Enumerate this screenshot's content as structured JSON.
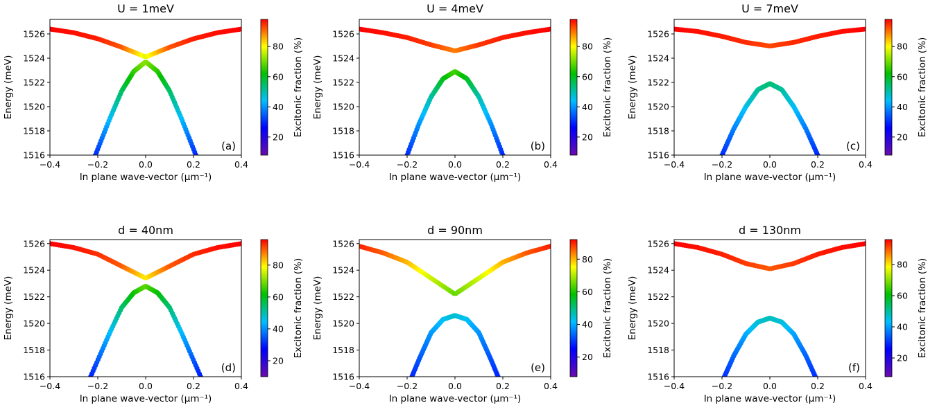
{
  "figure": {
    "common": {
      "xlabel": "In plane wave-vector (μm⁻¹)",
      "ylabel": "Energy (meV)",
      "colorbar_label": "Excitonic fraction (%)",
      "xticks": [
        "−0.4",
        "−0.2",
        "0.0",
        "0.2",
        "0.4"
      ],
      "yticks": [
        "1516",
        "1518",
        "1520",
        "1522",
        "1524",
        "1526"
      ],
      "cbticks": [
        "20",
        "40",
        "60",
        "80"
      ],
      "colormap": [
        "#6a0dad",
        "#0000ff",
        "#00bfff",
        "#00c000",
        "#ffff00",
        "#ff0000"
      ]
    }
  },
  "chart_data": [
    {
      "type": "line",
      "title": "U = 1meV",
      "panel_label": "(a)",
      "xlabel": "In plane wave-vector (μm⁻¹)",
      "ylabel": "Energy (meV)",
      "xlim": [
        -0.4,
        0.4
      ],
      "ylim": [
        1516,
        1527.2
      ],
      "colorbar": {
        "label": "Excitonic fraction (%)",
        "range": [
          8,
          98
        ]
      },
      "branches": {
        "upper": {
          "x": [
            -0.4,
            -0.3,
            -0.2,
            -0.1,
            0.0,
            0.1,
            0.2,
            0.3,
            0.4
          ],
          "energy": [
            1526.4,
            1526.1,
            1525.6,
            1524.9,
            1524.1,
            1524.9,
            1525.6,
            1526.1,
            1526.4
          ],
          "exciton_fraction": [
            98,
            97,
            96,
            92,
            78,
            92,
            96,
            97,
            98
          ]
        },
        "lower": {
          "x": [
            -0.21,
            -0.15,
            -0.1,
            -0.05,
            0.0,
            0.05,
            0.1,
            0.15,
            0.21
          ],
          "energy": [
            1516.0,
            1519.0,
            1521.3,
            1522.9,
            1523.7,
            1522.9,
            1521.3,
            1519.0,
            1516.0
          ],
          "exciton_fraction": [
            30,
            44,
            55,
            65,
            72,
            65,
            55,
            44,
            30
          ]
        }
      }
    },
    {
      "type": "line",
      "title": "U = 4meV",
      "panel_label": "(b)",
      "xlabel": "In plane wave-vector (μm⁻¹)",
      "ylabel": "Energy (meV)",
      "xlim": [
        -0.4,
        0.4
      ],
      "ylim": [
        1516,
        1527.2
      ],
      "colorbar": {
        "label": "Excitonic fraction (%)",
        "range": [
          8,
          98
        ]
      },
      "branches": {
        "upper": {
          "x": [
            -0.4,
            -0.3,
            -0.2,
            -0.1,
            0.0,
            0.1,
            0.2,
            0.3,
            0.4
          ],
          "energy": [
            1526.4,
            1526.1,
            1525.7,
            1525.1,
            1524.6,
            1525.1,
            1525.7,
            1526.1,
            1526.4
          ],
          "exciton_fraction": [
            98,
            97,
            96,
            94,
            89,
            94,
            96,
            97,
            98
          ]
        },
        "lower": {
          "x": [
            -0.2,
            -0.15,
            -0.1,
            -0.05,
            0.0,
            0.05,
            0.1,
            0.15,
            0.2
          ],
          "energy": [
            1516.0,
            1518.6,
            1520.8,
            1522.3,
            1522.9,
            1522.3,
            1520.8,
            1518.6,
            1516.0
          ],
          "exciton_fraction": [
            30,
            40,
            50,
            60,
            67,
            60,
            50,
            40,
            30
          ]
        }
      }
    },
    {
      "type": "line",
      "title": "U = 7meV",
      "panel_label": "(c)",
      "xlabel": "In plane wave-vector (μm⁻¹)",
      "ylabel": "Energy (meV)",
      "xlim": [
        -0.4,
        0.4
      ],
      "ylim": [
        1516,
        1527.2
      ],
      "colorbar": {
        "label": "Excitonic fraction (%)",
        "range": [
          8,
          98
        ]
      },
      "branches": {
        "upper": {
          "x": [
            -0.4,
            -0.3,
            -0.2,
            -0.1,
            0.0,
            0.1,
            0.2,
            0.3,
            0.4
          ],
          "energy": [
            1526.4,
            1526.2,
            1525.8,
            1525.3,
            1525.0,
            1525.3,
            1525.8,
            1526.2,
            1526.4
          ],
          "exciton_fraction": [
            98,
            97,
            96,
            95,
            93,
            95,
            96,
            97,
            98
          ]
        },
        "lower": {
          "x": [
            -0.2,
            -0.15,
            -0.1,
            -0.05,
            0.0,
            0.05,
            0.1,
            0.15,
            0.2
          ],
          "energy": [
            1516.0,
            1518.2,
            1520.0,
            1521.4,
            1521.9,
            1521.4,
            1520.0,
            1518.2,
            1516.0
          ],
          "exciton_fraction": [
            30,
            38,
            45,
            51,
            54,
            51,
            45,
            38,
            30
          ]
        }
      }
    },
    {
      "type": "line",
      "title": "d = 40nm",
      "panel_label": "(d)",
      "xlabel": "In plane wave-vector (μm⁻¹)",
      "ylabel": "Energy (meV)",
      "xlim": [
        -0.4,
        0.4
      ],
      "ylim": [
        1516,
        1526.3
      ],
      "colorbar": {
        "label": "Excitonic fraction (%)",
        "range": [
          10,
          96
        ]
      },
      "branches": {
        "upper": {
          "x": [
            -0.4,
            -0.3,
            -0.2,
            -0.1,
            0.0,
            0.1,
            0.2,
            0.3,
            0.4
          ],
          "energy": [
            1526.0,
            1525.7,
            1525.2,
            1524.3,
            1523.4,
            1524.3,
            1525.2,
            1525.7,
            1526.0
          ],
          "exciton_fraction": [
            96,
            95,
            93,
            90,
            80,
            90,
            93,
            95,
            96
          ]
        },
        "lower": {
          "x": [
            -0.23,
            -0.15,
            -0.1,
            -0.05,
            0.0,
            0.05,
            0.1,
            0.15,
            0.23
          ],
          "energy": [
            1516.0,
            1519.3,
            1521.2,
            1522.3,
            1522.8,
            1522.3,
            1521.2,
            1519.3,
            1516.0
          ],
          "exciton_fraction": [
            30,
            44,
            54,
            62,
            68,
            62,
            54,
            44,
            30
          ]
        }
      }
    },
    {
      "type": "line",
      "title": "d = 90nm",
      "panel_label": "(e)",
      "xlabel": "In plane wave-vector (μm⁻¹)",
      "ylabel": "Energy (meV)",
      "xlim": [
        -0.4,
        0.4
      ],
      "ylim": [
        1516,
        1526.3
      ],
      "colorbar": {
        "label": "Excitonic fraction (%)",
        "range": [
          8,
          92
        ]
      },
      "branches": {
        "upper": {
          "x": [
            -0.4,
            -0.3,
            -0.2,
            -0.1,
            0.0,
            0.1,
            0.2,
            0.3,
            0.4
          ],
          "energy": [
            1525.8,
            1525.3,
            1524.6,
            1523.4,
            1522.2,
            1523.4,
            1524.6,
            1525.3,
            1525.8
          ],
          "exciton_fraction": [
            90,
            86,
            80,
            72,
            65,
            72,
            80,
            86,
            90
          ]
        },
        "lower": {
          "x": [
            -0.18,
            -0.15,
            -0.1,
            -0.05,
            0.0,
            0.05,
            0.1,
            0.15,
            0.18
          ],
          "energy": [
            1516.0,
            1517.3,
            1519.3,
            1520.3,
            1520.6,
            1520.3,
            1519.3,
            1517.3,
            1516.0
          ],
          "exciton_fraction": [
            28,
            32,
            38,
            42,
            45,
            42,
            38,
            32,
            28
          ]
        }
      }
    },
    {
      "type": "line",
      "title": "d = 130nm",
      "panel_label": "(f)",
      "xlabel": "In plane wave-vector (μm⁻¹)",
      "ylabel": "Energy (meV)",
      "xlim": [
        -0.4,
        0.4
      ],
      "ylim": [
        1516,
        1526.3
      ],
      "colorbar": {
        "label": "Excitonic fraction (%)",
        "range": [
          8,
          96
        ]
      },
      "branches": {
        "upper": {
          "x": [
            -0.4,
            -0.3,
            -0.2,
            -0.1,
            0.0,
            0.1,
            0.2,
            0.3,
            0.4
          ],
          "energy": [
            1526.0,
            1525.7,
            1525.2,
            1524.5,
            1524.1,
            1524.5,
            1525.2,
            1525.7,
            1526.0
          ],
          "exciton_fraction": [
            96,
            95,
            94,
            92,
            90,
            92,
            94,
            95,
            96
          ]
        },
        "lower": {
          "x": [
            -0.19,
            -0.15,
            -0.1,
            -0.05,
            0.0,
            0.05,
            0.1,
            0.15,
            0.19
          ],
          "energy": [
            1516.0,
            1517.6,
            1519.2,
            1520.1,
            1520.4,
            1520.1,
            1519.2,
            1517.6,
            1516.0
          ],
          "exciton_fraction": [
            30,
            35,
            41,
            46,
            48,
            46,
            41,
            35,
            30
          ]
        }
      }
    }
  ]
}
